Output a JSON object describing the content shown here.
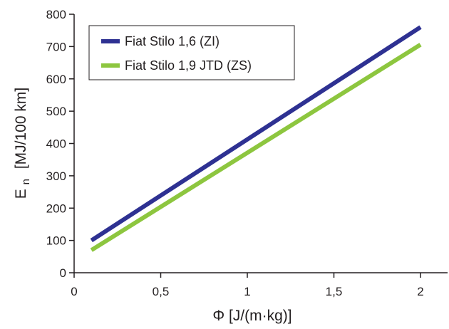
{
  "chart_data": {
    "type": "line",
    "x_label_main": "Φ [J/(m·kg)]",
    "y_label_main": "E",
    "y_label_sub": "n",
    "y_label_unit": "[MJ/100 km]",
    "xlim": [
      0,
      2.1
    ],
    "ylim": [
      0,
      800
    ],
    "x_ticks": [
      {
        "value": 0,
        "label": "0"
      },
      {
        "value": 0.5,
        "label": "0,5"
      },
      {
        "value": 1,
        "label": "1"
      },
      {
        "value": 1.5,
        "label": "1,5"
      },
      {
        "value": 2,
        "label": "2"
      }
    ],
    "y_ticks": [
      {
        "value": 0,
        "label": "0"
      },
      {
        "value": 100,
        "label": "100"
      },
      {
        "value": 200,
        "label": "200"
      },
      {
        "value": 300,
        "label": "300"
      },
      {
        "value": 400,
        "label": "400"
      },
      {
        "value": 500,
        "label": "500"
      },
      {
        "value": 600,
        "label": "600"
      },
      {
        "value": 700,
        "label": "700"
      },
      {
        "value": 800,
        "label": "800"
      }
    ],
    "grid": false,
    "legend_position": "top-left",
    "series": [
      {
        "name": "Fiat Stilo 1,6 (ZI)",
        "color": "#2e3192",
        "x": [
          0.1,
          2.0
        ],
        "y": [
          100,
          760
        ]
      },
      {
        "name": "Fiat Stilo 1,9 JTD (ZS)",
        "color": "#8dc63f",
        "x": [
          0.1,
          2.0
        ],
        "y": [
          70,
          706
        ]
      }
    ]
  }
}
